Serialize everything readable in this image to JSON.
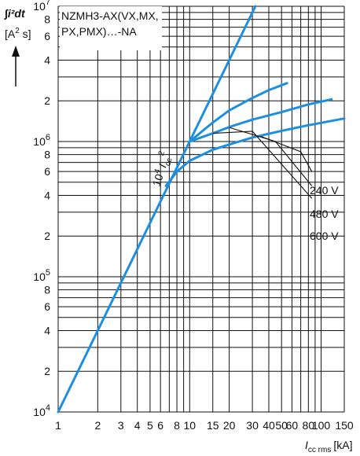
{
  "chart_data": {
    "type": "line",
    "title_lines": [
      "NZMH3-AX(VX,MX,",
      "PX,PMX)…-NA"
    ],
    "ylabel": {
      "integral": "∫i²dt",
      "unit_pre": "[A",
      "unit_exp": "2",
      "unit_post": " s]"
    },
    "xlabel": {
      "main": "I",
      "sub": "cc rms",
      "unit": "[kA]"
    },
    "xscale": "log",
    "yscale": "log",
    "xlim": [
      1,
      150
    ],
    "ylim": [
      10000,
      10000000
    ],
    "grid": true,
    "x_ticks": [
      {
        "v": 1,
        "t": "1"
      },
      {
        "v": 2,
        "t": "2"
      },
      {
        "v": 3,
        "t": "3"
      },
      {
        "v": 4,
        "t": "4"
      },
      {
        "v": 5,
        "t": "5"
      },
      {
        "v": 6,
        "t": "6"
      },
      {
        "v": 8,
        "t": "8"
      },
      {
        "v": 10,
        "t": "10"
      },
      {
        "v": 15,
        "t": "15"
      },
      {
        "v": 20,
        "t": "20"
      },
      {
        "v": 30,
        "t": "30"
      },
      {
        "v": 40,
        "t": "40"
      },
      {
        "v": 50,
        "t": "50"
      },
      {
        "v": 60,
        "t": "60"
      },
      {
        "v": 80,
        "t": "80"
      },
      {
        "v": 100,
        "t": "100"
      },
      {
        "v": 150,
        "t": "150"
      }
    ],
    "x_grid": [
      1,
      2,
      3,
      4,
      5,
      6,
      7,
      8,
      9,
      10,
      15,
      20,
      30,
      40,
      50,
      60,
      70,
      80,
      90,
      100,
      150
    ],
    "y_ticks": [
      {
        "v": 10000,
        "b": "10",
        "e": "4"
      },
      {
        "v": 20000,
        "t": "2"
      },
      {
        "v": 40000,
        "t": "4"
      },
      {
        "v": 60000,
        "t": "6"
      },
      {
        "v": 80000,
        "t": "8"
      },
      {
        "v": 100000,
        "b": "10",
        "e": "5"
      },
      {
        "v": 200000,
        "t": "2"
      },
      {
        "v": 400000,
        "t": "4"
      },
      {
        "v": 600000,
        "t": "6"
      },
      {
        "v": 800000,
        "t": "8"
      },
      {
        "v": 1000000,
        "b": "10",
        "e": "6"
      },
      {
        "v": 2000000,
        "t": "2"
      },
      {
        "v": 4000000,
        "t": "4"
      },
      {
        "v": 6000000,
        "t": "6"
      },
      {
        "v": 8000000,
        "t": "8"
      },
      {
        "v": 10000000,
        "b": "10",
        "e": "7"
      }
    ],
    "y_grid": [
      10000,
      20000,
      30000,
      40000,
      50000,
      60000,
      70000,
      80000,
      90000,
      100000,
      200000,
      300000,
      400000,
      500000,
      600000,
      700000,
      800000,
      900000,
      1000000,
      2000000,
      3000000,
      4000000,
      5000000,
      6000000,
      7000000,
      8000000,
      9000000,
      10000000
    ],
    "series": [
      {
        "name": "10⁴ Icc²",
        "points": [
          [
            1,
            10000
          ],
          [
            31.6,
            10000000
          ]
        ]
      },
      {
        "name": "240 V",
        "points": [
          [
            6.6,
            470000
          ],
          [
            8,
            600000
          ],
          [
            10,
            720000
          ],
          [
            15,
            870000
          ],
          [
            20,
            950000
          ],
          [
            30,
            1070000
          ],
          [
            50,
            1200000
          ],
          [
            80,
            1320000
          ],
          [
            150,
            1480000
          ]
        ]
      },
      {
        "name": "480 V",
        "points": [
          [
            10,
            1000000
          ],
          [
            15,
            1150000
          ],
          [
            20,
            1280000
          ],
          [
            30,
            1450000
          ],
          [
            50,
            1650000
          ],
          [
            80,
            1880000
          ],
          [
            120,
            2050000
          ]
        ]
      },
      {
        "name": "600 V",
        "points": [
          [
            10,
            1000000
          ],
          [
            15,
            1380000
          ],
          [
            20,
            1700000
          ],
          [
            30,
            2100000
          ],
          [
            40,
            2400000
          ],
          [
            55,
            2700000
          ]
        ]
      }
    ],
    "annotations": {
      "diag": {
        "pre": "10",
        "exp": "4",
        "mid": " I",
        "sub": "cc",
        "sup": "2"
      },
      "voltages": [
        "240 V",
        "480 V",
        "600 V"
      ]
    },
    "color": "#1d8fe0"
  }
}
